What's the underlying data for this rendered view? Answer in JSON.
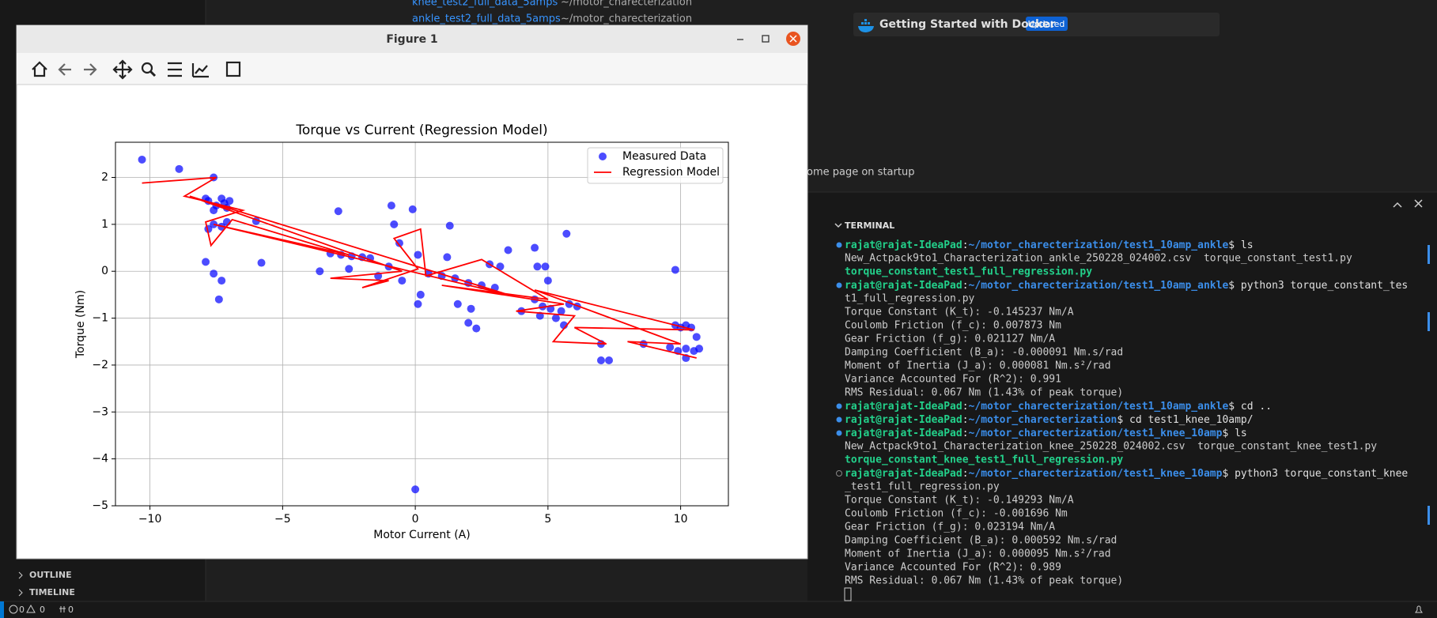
{
  "editor": {
    "recent": [
      {
        "name": "knee_test2_full_data_5amps",
        "path": "~/motor_charecterization"
      },
      {
        "name": "ankle_test2_full_data_5amps",
        "path": "~/motor_charecterization"
      }
    ],
    "walkthrough": {
      "title": "Getting Started with Docker",
      "badge": "Updated"
    },
    "startup_option": "ome page on startup"
  },
  "sidebar": {
    "sections": [
      "OUTLINE",
      "TIMELINE"
    ]
  },
  "statusbar": {
    "errors": 0,
    "warnings": 0,
    "ports": 0
  },
  "window": {
    "title": "Figure 1"
  },
  "terminal": {
    "title": "TERMINAL",
    "lines": [
      {
        "user": "rajat@rajat-IdeaPad",
        "sep": ":",
        "path": "~/motor_charecterization/test1_10amp_ankle",
        "cmd": "$ ls"
      },
      {
        "text": "New_Actpack9to1_Characterization_ankle_250228_024002.csv  torque_constant_test1.py"
      },
      {
        "exec": "torque_constant_test1_full_regression.py"
      },
      {
        "user": "rajat@rajat-IdeaPad",
        "sep": ":",
        "path": "~/motor_charecterization/test1_10amp_ankle",
        "cmd": "$ python3 torque_constant_tes"
      },
      {
        "text": "t1_full_regression.py"
      },
      {
        "text": "Torque Constant (K_t): -0.145237 Nm/A"
      },
      {
        "text": "Coulomb Friction (f_c): 0.007873 Nm"
      },
      {
        "text": "Gear Friction (f_g): 0.021127 Nm/A"
      },
      {
        "text": "Damping Coefficient (B_a): -0.000091 Nm.s/rad"
      },
      {
        "text": "Moment of Inertia (J_a): 0.000081 Nm.s²/rad"
      },
      {
        "text": "Variance Accounted For (R^2): 0.991"
      },
      {
        "text": "RMS Residual: 0.067 Nm (1.43% of peak torque)"
      },
      {
        "user": "rajat@rajat-IdeaPad",
        "sep": ":",
        "path": "~/motor_charecterization/test1_10amp_ankle",
        "cmd": "$ cd .."
      },
      {
        "user": "rajat@rajat-IdeaPad",
        "sep": ":",
        "path": "~/motor_charecterization",
        "cmd": "$ cd test1_knee_10amp/"
      },
      {
        "user": "rajat@rajat-IdeaPad",
        "sep": ":",
        "path": "~/motor_charecterization/test1_knee_10amp",
        "cmd": "$ ls"
      },
      {
        "text": "New_Actpack9to1_Characterization_knee_250228_024002.csv  torque_constant_knee_test1.py"
      },
      {
        "exec": "torque_constant_knee_test1_full_regression.py"
      },
      {
        "user": "rajat@rajat-IdeaPad",
        "sep": ":",
        "path": "~/motor_charecterization/test1_knee_10amp",
        "cmd": "$ python3 torque_constant_knee",
        "running": true
      },
      {
        "text": "_test1_full_regression.py"
      },
      {
        "text": "Torque Constant (K_t): -0.149293 Nm/A"
      },
      {
        "text": "Coulomb Friction (f_c): -0.001696 Nm"
      },
      {
        "text": "Gear Friction (f_g): 0.023194 Nm/A"
      },
      {
        "text": "Damping Coefficient (B_a): 0.000592 Nm.s/rad"
      },
      {
        "text": "Moment of Inertia (J_a): 0.000095 Nm.s²/rad"
      },
      {
        "text": "Variance Accounted For (R^2): 0.989"
      },
      {
        "text": "RMS Residual: 0.067 Nm (1.43% of peak torque)"
      }
    ]
  },
  "chart_data": {
    "type": "scatter",
    "title": "Torque vs Current (Regression Model)",
    "x_label": "Motor Current (A)",
    "y_label": "Torque (Nm)",
    "xlim": [
      -11.3,
      11.8
    ],
    "ylim": [
      -5.0,
      2.75
    ],
    "xticks": [
      {
        "value": -10,
        "label": "−10"
      },
      {
        "value": -5,
        "label": "−5"
      },
      0,
      5,
      10
    ],
    "yticks": [
      {
        "value": -5,
        "label": "−5"
      },
      {
        "value": -4,
        "label": "−4"
      },
      {
        "value": -3,
        "label": "−3"
      },
      {
        "value": -2,
        "label": "−2"
      },
      {
        "value": -1,
        "label": "−1"
      },
      0,
      1,
      2
    ],
    "grid": true,
    "legend": "upper right",
    "series": [
      {
        "name": "Measured Data",
        "type": "scatter",
        "color": "#0000ff",
        "x": [
          -10.3,
          -8.9,
          -7.6,
          -7.8,
          -7.5,
          -7.3,
          -7.1,
          -7.6,
          -7.2,
          -7.0,
          -7.9,
          -7.6,
          -7.3,
          -7.1,
          -7.8,
          -6.0,
          -7.9,
          -7.6,
          -7.3,
          -7.4,
          -5.8,
          -2.9,
          -3.6,
          -3.2,
          -2.8,
          -2.4,
          -2.0,
          -1.7,
          -2.5,
          -1.4,
          -1.0,
          -0.9,
          -0.8,
          -0.1,
          1.3,
          -0.6,
          0.1,
          0.1,
          0.2,
          -0.5,
          0.0,
          0.5,
          1.0,
          1.5,
          2.0,
          2.5,
          3.0,
          1.2,
          2.8,
          3.2,
          1.6,
          2.1,
          2.0,
          2.3,
          3.5,
          4.5,
          5.0,
          4.6,
          4.9,
          4.5,
          4.8,
          5.1,
          5.5,
          5.8,
          6.1,
          4.7,
          5.3,
          5.7,
          4.0,
          5.6,
          7.0,
          7.0,
          7.3,
          8.6,
          9.8,
          9.8,
          10.0,
          10.2,
          10.4,
          9.6,
          9.9,
          10.2,
          10.5,
          10.7,
          10.2,
          10.6
        ],
        "y": [
          2.38,
          2.18,
          2.0,
          1.5,
          1.4,
          1.55,
          1.35,
          1.3,
          1.45,
          1.5,
          1.55,
          1.0,
          0.95,
          1.05,
          0.9,
          1.07,
          0.2,
          -0.05,
          -0.2,
          -0.6,
          0.18,
          1.28,
          0.0,
          0.38,
          0.35,
          0.32,
          0.3,
          0.28,
          0.05,
          -0.1,
          0.1,
          1.4,
          1.0,
          1.32,
          0.97,
          0.6,
          0.35,
          -0.7,
          -0.5,
          -0.2,
          -4.65,
          -0.05,
          -0.1,
          -0.15,
          -0.25,
          -0.3,
          -0.35,
          0.3,
          0.15,
          0.1,
          -0.7,
          -0.8,
          -1.1,
          -1.22,
          0.45,
          0.5,
          -0.2,
          0.1,
          0.1,
          -0.6,
          -0.75,
          -0.8,
          -0.85,
          -0.7,
          -0.75,
          -0.95,
          -1.0,
          0.8,
          -0.85,
          -1.15,
          -1.55,
          -1.9,
          -1.9,
          -1.55,
          0.03,
          -1.15,
          -1.2,
          -1.15,
          -1.2,
          -1.62,
          -1.7,
          -1.65,
          -1.7,
          -1.65,
          -1.85,
          -1.4
        ]
      },
      {
        "name": "Regression Model",
        "type": "line",
        "color": "#ff0000",
        "x": [
          -10.3,
          -7.5,
          -8.7,
          -6.5,
          -7.9,
          -7.7,
          -6.9,
          -2.5,
          -7.6,
          3.5,
          -8.5,
          -0.5,
          -3.2,
          -1.0,
          -2.0,
          0.1,
          -0.8,
          0.2,
          0.4,
          2.5,
          5.0,
          1.0,
          5.6,
          3.8,
          6.0,
          5.2,
          7.2,
          6.0,
          10.5,
          4.5,
          10.0,
          8.0,
          10.6
        ],
        "y": [
          1.88,
          2.0,
          1.6,
          1.3,
          1.05,
          0.55,
          1.1,
          0.35,
          1.0,
          -0.5,
          1.6,
          0.0,
          -0.15,
          -0.2,
          -0.35,
          0.05,
          0.7,
          0.9,
          -0.1,
          0.25,
          -0.6,
          -0.3,
          -0.7,
          -0.85,
          -0.95,
          -1.5,
          -1.55,
          -1.2,
          -1.25,
          -0.4,
          -1.55,
          -1.5,
          -1.85
        ]
      }
    ]
  }
}
